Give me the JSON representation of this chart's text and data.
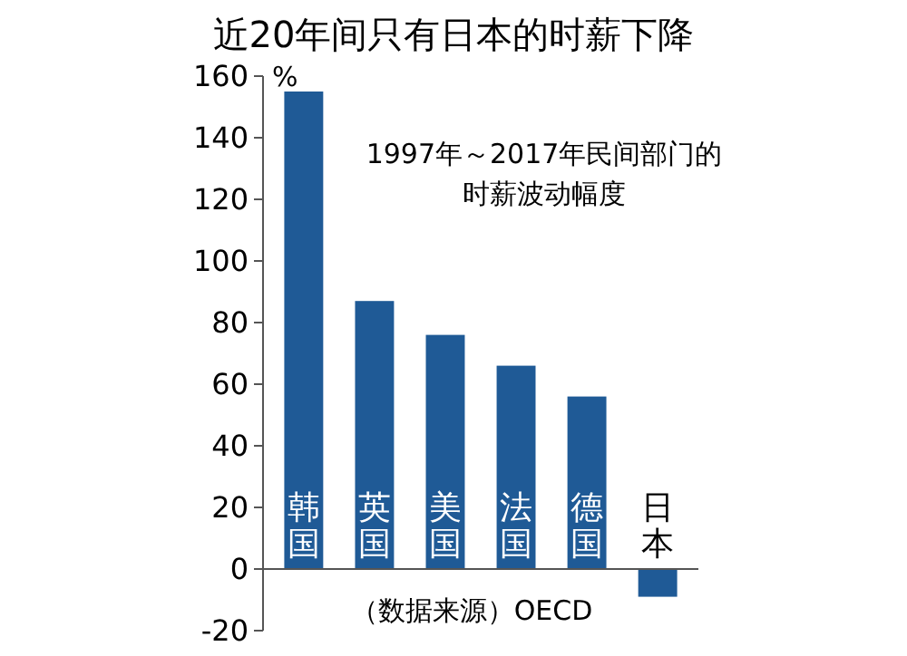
{
  "chart_data": {
    "type": "bar",
    "title": "近20年间只有日本的时薪下降",
    "ylabel": "%",
    "categories": [
      "韩国",
      "英国",
      "美国",
      "法国",
      "德国",
      "日本"
    ],
    "values": [
      155,
      87,
      76,
      66,
      56,
      -9
    ],
    "color": "#1f5a96",
    "ylim": [
      -20,
      160
    ],
    "yticks": [
      -20,
      0,
      20,
      40,
      60,
      80,
      100,
      120,
      140,
      160
    ],
    "grid": false,
    "annotations": [
      "1997年～2017年民间部门的",
      "时薪波动幅度",
      "（数据来源）OECD"
    ]
  }
}
